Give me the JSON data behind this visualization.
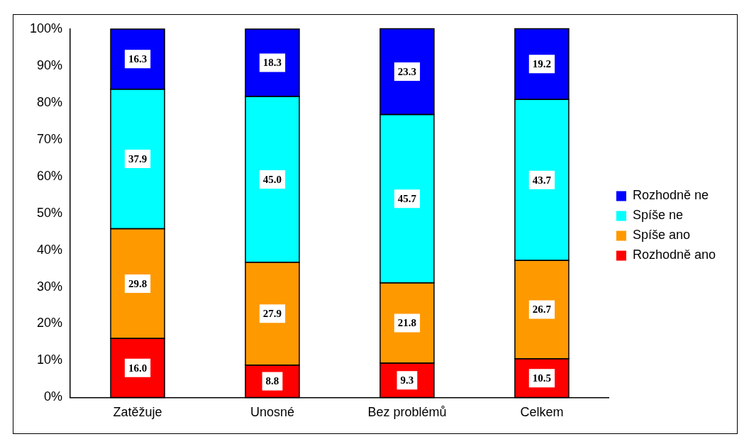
{
  "chart_data": {
    "type": "bar",
    "stacked": true,
    "categories": [
      "Zatěžuje",
      "Unosné",
      "Bez problémů",
      "Celkem"
    ],
    "series": [
      {
        "name": "Rozhodně ano",
        "color": "#ff0000",
        "values": [
          16.0,
          8.8,
          9.3,
          10.5
        ],
        "value_labels": [
          "16.0",
          "8.8",
          "9.3",
          "10.5"
        ]
      },
      {
        "name": "Spíše ano",
        "color": "#ff9900",
        "values": [
          29.8,
          27.9,
          21.8,
          26.7
        ],
        "value_labels": [
          "29.8",
          "27.9",
          "21.8",
          "26.7"
        ]
      },
      {
        "name": "Spíše ne",
        "color": "#00ffff",
        "values": [
          37.9,
          45.0,
          45.7,
          43.7
        ],
        "value_labels": [
          "37.9",
          "45.0",
          "45.7",
          "43.7"
        ]
      },
      {
        "name": "Rozhodně ne",
        "color": "#0000ff",
        "values": [
          16.3,
          18.3,
          23.3,
          19.2
        ],
        "value_labels": [
          "16.3",
          "18.3",
          "23.3",
          "19.2"
        ]
      }
    ],
    "ylim": [
      0,
      100
    ],
    "yticks": [
      {
        "value": 0,
        "label": "0%"
      },
      {
        "value": 10,
        "label": "10%"
      },
      {
        "value": 20,
        "label": "20%"
      },
      {
        "value": 30,
        "label": "30%"
      },
      {
        "value": 40,
        "label": "40%"
      },
      {
        "value": 50,
        "label": "50%"
      },
      {
        "value": 60,
        "label": "60%"
      },
      {
        "value": 70,
        "label": "70%"
      },
      {
        "value": 80,
        "label": "80%"
      },
      {
        "value": 90,
        "label": "90%"
      },
      {
        "value": 100,
        "label": "100%"
      }
    ],
    "grid": false,
    "legend": "right"
  }
}
